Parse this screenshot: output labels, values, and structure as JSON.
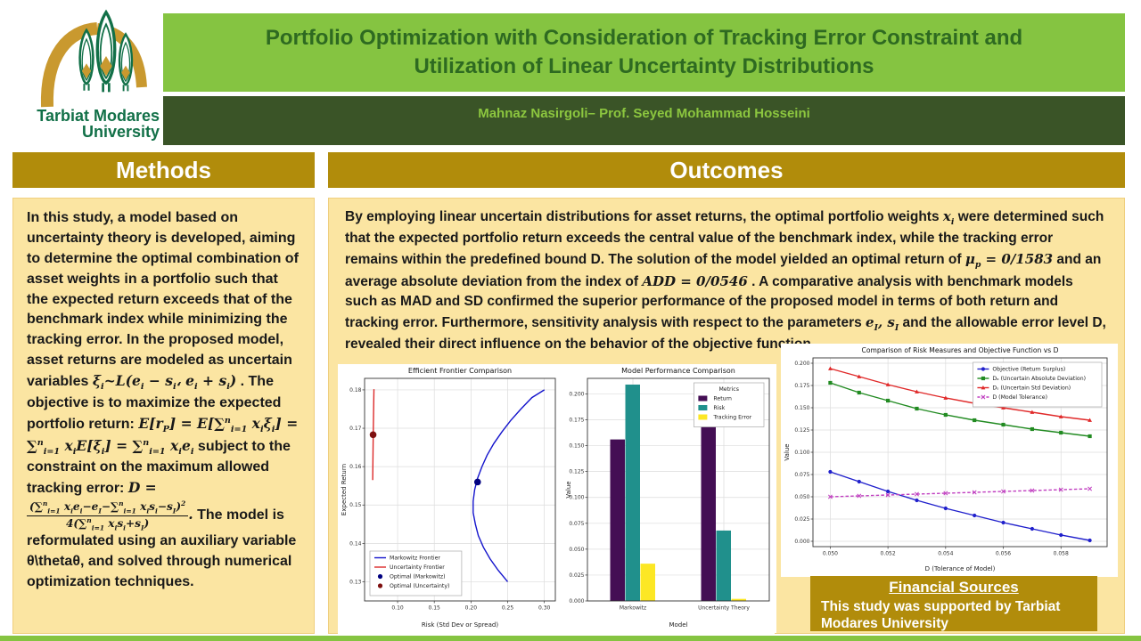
{
  "poster": {
    "title_html": "Portfolio Optimization with Consideration of Tracking Error Constraint and<br>Utilization of Linear Uncertainty Distributions",
    "authors": "Mahnaz  Nasirgoli– Prof. Seyed Mohammad  Hosseini"
  },
  "logo": {
    "name_line1": "Tarbiat Modares",
    "name_line2": "University"
  },
  "colors": {
    "title_band_green": "#85C441",
    "title_text_green": "#2E6A21",
    "author_band_green": "#3A5427",
    "author_text_green": "#8CC63F",
    "gold_header": "#B18C0B",
    "cream_panel": "#FBE5A2",
    "logo_gold": "#C9992F",
    "logo_green": "#127048"
  },
  "methods": {
    "header": "Methods",
    "body_html": "In this study, a model based on uncertainty theory is developed, aiming to determine the optimal combination of asset weights in a portfolio such that the expected return exceeds that of the benchmark index while minimizing the tracking error. In the proposed model, asset returns are modeled as uncertain variables <span class='m'>ξ<sub>i</sub>~<span class='scr'>L</span>(e<sub>i</sub> − s<sub>i</sub>، e<sub>i</sub> + s<sub>i</sub>)</span> . The objective is to maximize the expected portfolio return: <span class='m'>E[r<sub>P</sub>] = E[∑<sup>n</sup><sub>i=1</sub> x<sub>i</sub>ξ<sub>i</sub>] = ∑<sup>n</sup><sub>i=1</sub> x<sub>i</sub>E[ξ<sub>i</sub>] = ∑<sup>n</sup><sub>i=1</sub> x<sub>i</sub>e<sub>i</sub></span> subject to the constraint on the maximum allowed tracking error: <span class='m'>D = <span class='frac'><span class='num'>(∑<sup>n</sup><sub>i=1</sub> x<sub>i</sub>e<sub>i</sub>−e<sub>I</sub>−∑<sup>n</sup><sub>i=1</sub> x<sub>i</sub>s<sub>i</sub>−s<sub>I</sub>)<sup>2</sup></span><span class='den'>4(∑<sup>n</sup><sub>i=1</sub> x<sub>i</sub>s<sub>i</sub>+s<sub>I</sub>)</span></span>.</span> The model is reformulated using an auxiliary variable θ\\thetaθ, and solved through numerical optimization techniques."
  },
  "outcomes": {
    "header": "Outcomes",
    "body_html": "By employing linear uncertain distributions for asset returns, the optimal portfolio weights <span class='m'>x<sub>i</sub></span> were determined such that the expected portfolio return exceeds the central value of the benchmark index, while the tracking error remains within the predefined bound D. The solution of the model yielded an optimal return of <span class='m'>μ<sub>p</sub> = 0/1583</span> and an average absolute deviation from the index of <span class='m'>ADD = 0/0546</span> . A comparative analysis with benchmark models such as MAD and SD confirmed the superior performance of the proposed model in terms of both return and tracking error. Furthermore, sensitivity analysis with respect to the parameters <span class='m'>e<sub>I</sub>, s<sub>I</sub></span> and the allowable error level D, revealed their direct influence on the behavior of the objective function."
  },
  "financial": {
    "header": "Financial Sources",
    "body": "This study was supported by Tarbiat Modares University"
  },
  "chart_data": [
    {
      "type": "line",
      "title": "Efficient Frontier Comparison",
      "xlabel": "Risk (Std Dev or Spread)",
      "ylabel": "Expected Return",
      "xlim": [
        0.055,
        0.315
      ],
      "ylim": [
        0.125,
        0.183
      ],
      "xticks": [
        0.1,
        0.15,
        0.2,
        0.25,
        0.3
      ],
      "xtick_fmt": 2,
      "yticks": [
        0.13,
        0.14,
        0.15,
        0.16,
        0.17,
        0.18
      ],
      "ytick_fmt": 2,
      "grid": true,
      "legend": {
        "pos": "bl"
      },
      "series": [
        {
          "name": "Markowitz Frontier",
          "color": "#1414CC",
          "marker": "none",
          "points": [
            [
              0.25,
              0.13
            ],
            [
              0.237,
              0.133
            ],
            [
              0.226,
              0.136
            ],
            [
              0.217,
              0.139
            ],
            [
              0.21,
              0.142
            ],
            [
              0.206,
              0.145
            ],
            [
              0.203,
              0.148
            ],
            [
              0.203,
              0.151
            ],
            [
              0.205,
              0.154
            ],
            [
              0.209,
              0.157
            ],
            [
              0.215,
              0.16
            ],
            [
              0.222,
              0.163
            ],
            [
              0.231,
              0.166
            ],
            [
              0.242,
              0.169
            ],
            [
              0.254,
              0.172
            ],
            [
              0.268,
              0.175
            ],
            [
              0.283,
              0.178
            ],
            [
              0.3,
              0.18
            ]
          ]
        },
        {
          "name": "Uncertainty Frontier",
          "color": "#DC2A2A",
          "marker": "none",
          "points": [
            [
              0.066,
              0.1565
            ],
            [
              0.0664,
              0.1625
            ],
            [
              0.0668,
              0.1685
            ],
            [
              0.0673,
              0.1745
            ],
            [
              0.0678,
              0.1802
            ]
          ]
        },
        {
          "name": "Optimal (Markowitz)",
          "color": "#000080",
          "marker": "circle",
          "scatter": true,
          "points": [
            [
              0.209,
              0.156
            ]
          ]
        },
        {
          "name": "Optimal (Uncertainty)",
          "color": "#7E1010",
          "marker": "circle",
          "scatter": true,
          "points": [
            [
              0.0666,
              0.1683
            ]
          ]
        }
      ]
    },
    {
      "type": "bar",
      "title": "Model Performance Comparison",
      "xlabel": "Model",
      "ylabel": "Value",
      "categories": [
        "Markowitz",
        "Uncertainty Theory"
      ],
      "ylim": [
        0,
        0.215
      ],
      "yticks": [
        0.0,
        0.025,
        0.05,
        0.075,
        0.1,
        0.125,
        0.15,
        0.175,
        0.2
      ],
      "ytick_fmt": 3,
      "grid": true,
      "legend": {
        "pos": "tr",
        "title": "Metrics"
      },
      "series": [
        {
          "name": "Return",
          "color": "#440E54",
          "values": [
            0.156,
            0.168
          ]
        },
        {
          "name": "Risk",
          "color": "#20908C",
          "values": [
            0.209,
            0.068
          ]
        },
        {
          "name": "Tracking Error",
          "color": "#FCE724",
          "values": [
            0.036,
            0.002
          ]
        }
      ]
    },
    {
      "type": "line",
      "title": "Comparison of Risk Measures and Objective Function vs D",
      "xlabel": "D (Tolerance of Model)",
      "ylabel": "Value",
      "xlim": [
        0.0494,
        0.0596
      ],
      "ylim": [
        -0.006,
        0.206
      ],
      "xticks": [
        0.05,
        0.052,
        0.054,
        0.056,
        0.058
      ],
      "xtick_fmt": 3,
      "yticks": [
        0.0,
        0.025,
        0.05,
        0.075,
        0.1,
        0.125,
        0.15,
        0.175,
        0.2
      ],
      "ytick_fmt": 3,
      "grid": true,
      "legend": {
        "pos": "tr"
      },
      "x": [
        0.05,
        0.051,
        0.052,
        0.053,
        0.054,
        0.055,
        0.056,
        0.057,
        0.058,
        0.059
      ],
      "series": [
        {
          "name": "Objective (Return Surplus)",
          "color": "#2020CC",
          "marker": "circle",
          "values": [
            0.078,
            0.067,
            0.056,
            0.046,
            0.037,
            0.029,
            0.021,
            0.014,
            0.007,
            0.001
          ]
        },
        {
          "name": "Dₐ (Uncertain Absolute Deviation)",
          "color": "#228B22",
          "marker": "square",
          "values": [
            0.178,
            0.167,
            0.158,
            0.149,
            0.142,
            0.136,
            0.131,
            0.126,
            0.122,
            0.118
          ]
        },
        {
          "name": "Dₛ (Uncertain Std Deviation)",
          "color": "#E02929",
          "marker": "triangle",
          "values": [
            0.194,
            0.185,
            0.176,
            0.168,
            0.161,
            0.155,
            0.15,
            0.145,
            0.14,
            0.136
          ]
        },
        {
          "name": "D (Model Tolerance)",
          "color": "#C03FC0",
          "marker": "x",
          "dash": true,
          "values": [
            0.05,
            0.051,
            0.052,
            0.053,
            0.054,
            0.055,
            0.056,
            0.057,
            0.058,
            0.059
          ]
        }
      ]
    }
  ]
}
